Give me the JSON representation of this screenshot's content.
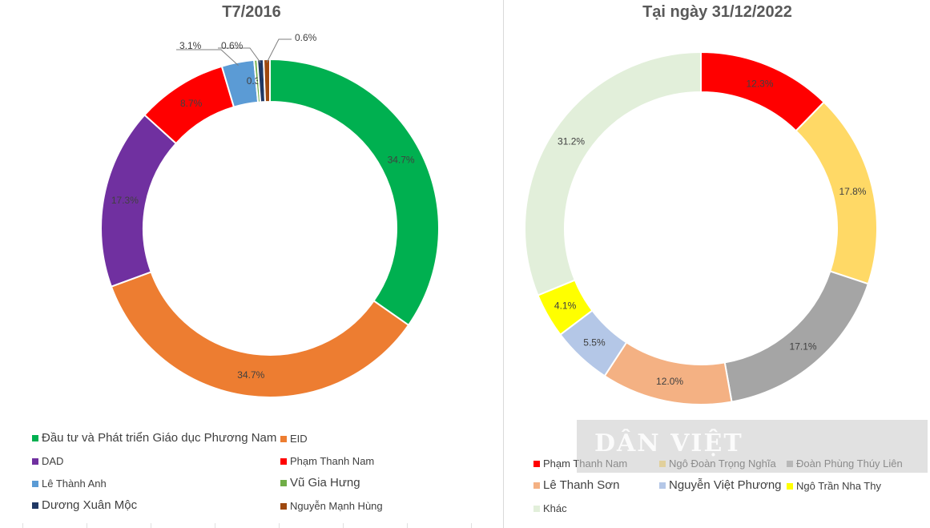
{
  "chart_data": [
    {
      "type": "pie",
      "title": "T7/2016",
      "slices": [
        {
          "label": "Đầu tư và Phát triển Giáo dục Phương Nam",
          "value": 34.7,
          "display": "34.7%",
          "color": "#00b050"
        },
        {
          "label": "EID",
          "value": 34.7,
          "display": "34.7%",
          "color": "#ed7d31"
        },
        {
          "label": "DAD",
          "value": 17.3,
          "display": "17.3%",
          "color": "#7030a0"
        },
        {
          "label": "Phạm Thanh Nam",
          "value": 8.7,
          "display": "8.7%",
          "color": "#ff0000"
        },
        {
          "label": "Lê Thành Anh",
          "value": 3.1,
          "display": "3.1%",
          "color": "#5b9bd5"
        },
        {
          "label": "Vũ Gia Hưng",
          "value": 0.3,
          "display": "0.3%",
          "color": "#70ad47"
        },
        {
          "label": "Dương Xuân Mộc",
          "value": 0.6,
          "display": "0.6%",
          "color": "#203864"
        },
        {
          "label": "Nguyễn Mạnh Hùng",
          "value": 0.6,
          "display": "0.6%",
          "color": "#9e480e"
        }
      ],
      "legend_position": "bottom"
    },
    {
      "type": "pie",
      "title": "Tại ngày 31/12/2022",
      "slices": [
        {
          "label": "Phạm Thanh Nam",
          "value": 12.3,
          "display": "12.3%",
          "color": "#ff0000"
        },
        {
          "label": "Ngô Đoàn Trọng Nghĩa",
          "value": 17.8,
          "display": "17.8%",
          "color": "#ffd966"
        },
        {
          "label": "Đoàn Phùng Thúy Liên",
          "value": 17.1,
          "display": "17.1%",
          "color": "#a5a5a5"
        },
        {
          "label": "Lê Thanh Sơn",
          "value": 12.0,
          "display": "12.0%",
          "color": "#f4b183"
        },
        {
          "label": "Nguyễn Việt Phương",
          "value": 5.5,
          "display": "5.5%",
          "color": "#b4c7e7"
        },
        {
          "label": "Ngô Trần Nha Thy",
          "value": 4.1,
          "display": "4.1%",
          "color": "#ffff00"
        },
        {
          "label": "Khác",
          "value": 31.2,
          "display": "31.2%",
          "color": "#e2efda"
        }
      ],
      "legend_position": "bottom"
    }
  ],
  "watermark": {
    "text": "DÂN VIỆT"
  }
}
